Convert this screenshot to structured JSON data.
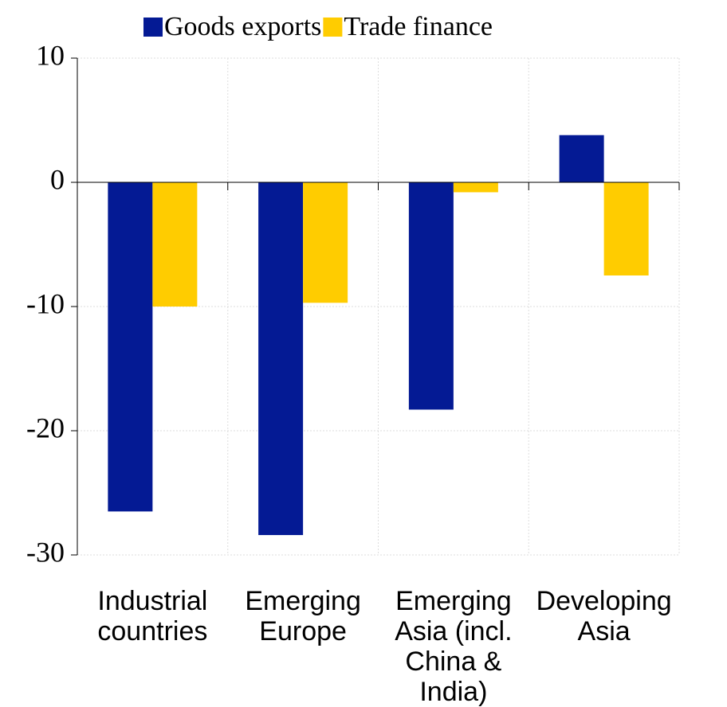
{
  "chart_data": {
    "type": "bar",
    "categories": [
      "Industrial countries",
      "Emerging Europe",
      "Emerging Asia (incl. China & India)",
      "Developing Asia"
    ],
    "series": [
      {
        "name": "Goods exports",
        "color": "#041a94",
        "values": [
          -26.5,
          -28.4,
          -18.3,
          3.8
        ]
      },
      {
        "name": "Trade finance",
        "color": "#ffcc00",
        "values": [
          -10,
          -9.7,
          -0.8,
          -7.5
        ]
      }
    ],
    "ylim": [
      -30,
      10
    ],
    "yticks": [
      -30,
      -20,
      -10,
      0,
      10
    ],
    "grid": true,
    "legend": "top"
  }
}
